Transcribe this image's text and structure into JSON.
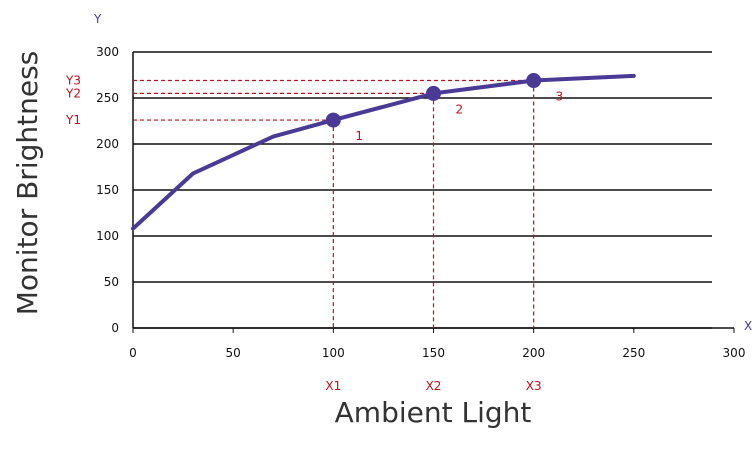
{
  "colors": {
    "line": "#4a3a96",
    "annotation": "#c0101a",
    "axis_letter": "#4a3a96",
    "grid": "#111111"
  },
  "chart_data": {
    "type": "line",
    "xlabel": "Ambient Light",
    "ylabel": "Monitor Brightness",
    "x_axis_letter": "X",
    "y_axis_letter": "Y",
    "xlim": [
      0,
      300
    ],
    "ylim": [
      0,
      300
    ],
    "x_ticks": [
      0,
      50,
      100,
      150,
      200,
      250,
      300
    ],
    "y_ticks": [
      0,
      50,
      100,
      150,
      200,
      250,
      300
    ],
    "grid": "horizontal",
    "series": [
      {
        "x": [
          0,
          30,
          70,
          100,
          150,
          200,
          250
        ],
        "y": [
          108,
          168,
          208,
          226,
          255,
          269,
          274
        ]
      }
    ],
    "highlighted_points": [
      {
        "label": "1",
        "x": 100,
        "y": 226,
        "x_label": "X1",
        "y_label": "Y1"
      },
      {
        "label": "2",
        "x": 150,
        "y": 255,
        "x_label": "X2",
        "y_label": "Y2"
      },
      {
        "label": "3",
        "x": 200,
        "y": 269,
        "x_label": "X3",
        "y_label": "Y3"
      }
    ]
  }
}
